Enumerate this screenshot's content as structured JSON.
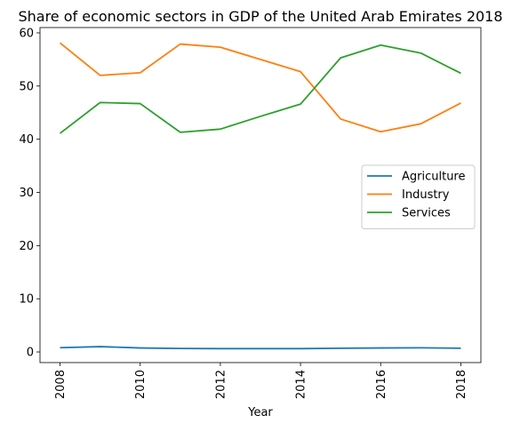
{
  "chart_data": {
    "type": "line",
    "title": "Share of economic sectors in GDP of the United Arab Emirates 2018",
    "xlabel": "Year",
    "ylabel": "",
    "x": [
      2008,
      2009,
      2010,
      2011,
      2012,
      2013,
      2014,
      2015,
      2016,
      2017,
      2018
    ],
    "xticks": [
      "2008",
      "2010",
      "2012",
      "2014",
      "2016",
      "2018"
    ],
    "yticks": [
      "0",
      "10",
      "20",
      "30",
      "40",
      "50",
      "60"
    ],
    "xlim": [
      2007.5,
      2018.5
    ],
    "ylim": [
      -2.0,
      61.0
    ],
    "grid": false,
    "legend_position": "center-right",
    "series": [
      {
        "name": "Agriculture",
        "color": "#1f77b4",
        "values": [
          0.8,
          1.0,
          0.75,
          0.65,
          0.62,
          0.62,
          0.62,
          0.7,
          0.75,
          0.78,
          0.7
        ]
      },
      {
        "name": "Industry",
        "color": "#ff7f0e",
        "values": [
          58.1,
          52.0,
          52.5,
          57.9,
          57.3,
          55.0,
          52.7,
          43.8,
          41.4,
          42.9,
          46.8
        ]
      },
      {
        "name": "Services",
        "color": "#2ca02c",
        "values": [
          41.1,
          46.9,
          46.7,
          41.3,
          41.9,
          44.3,
          46.6,
          55.3,
          57.7,
          56.2,
          52.4
        ]
      }
    ]
  }
}
